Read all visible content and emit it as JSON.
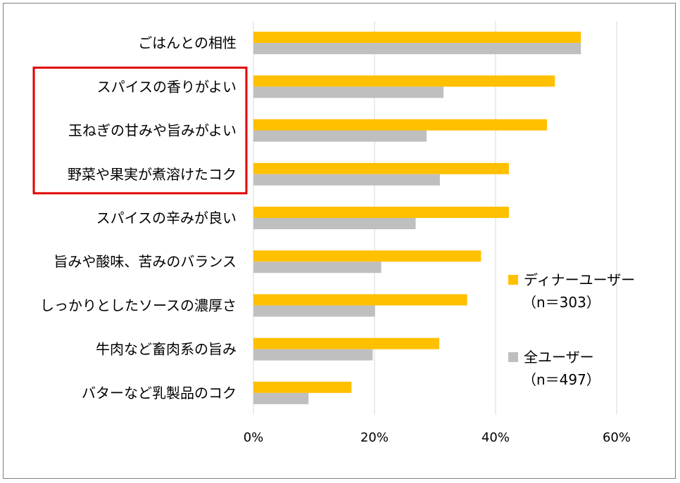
{
  "chart_data": {
    "type": "bar",
    "orientation": "horizontal",
    "categories": [
      "ごはんとの相性",
      "スパイスの香りがよい",
      "玉ねぎの甘みや旨みがよい",
      "野菜や果実が煮溶けたコク",
      "スパイスの辛みが良い",
      "旨みや酸味、苦みのバランス",
      "しっかりとしたソースの濃厚さ",
      "牛肉など畜肉系の旨み",
      "バターなど乳製品のコク"
    ],
    "series": [
      {
        "name": "ディナーユーザー（n＝303）",
        "color": "#FFC000",
        "values": [
          54.1,
          49.8,
          48.5,
          42.2,
          42.2,
          37.6,
          35.3,
          30.7,
          16.2
        ]
      },
      {
        "name": "全ユーザー（n＝497）",
        "color": "#BFBFBF",
        "values": [
          54.1,
          31.4,
          28.6,
          30.8,
          26.8,
          21.1,
          20.1,
          19.7,
          9.1
        ]
      }
    ],
    "xlim": [
      0,
      60
    ],
    "xticks": [
      0,
      20,
      40,
      60
    ],
    "xtick_labels": [
      "0%",
      "20%",
      "40%",
      "60%"
    ],
    "grid": true,
    "legend": {
      "placement": "right",
      "entries": [
        {
          "line1": "ディナーユーザー",
          "line2": "（n＝303）",
          "color": "#FFC000"
        },
        {
          "line1": "全ユーザー",
          "line2": "（n＝497）",
          "color": "#BFBFBF"
        }
      ]
    },
    "highlight": {
      "categories": [
        "スパイスの香りがよい",
        "玉ねぎの甘みや旨みがよい",
        "野菜や果実が煮溶けたコク"
      ],
      "color": "#E00000"
    }
  }
}
